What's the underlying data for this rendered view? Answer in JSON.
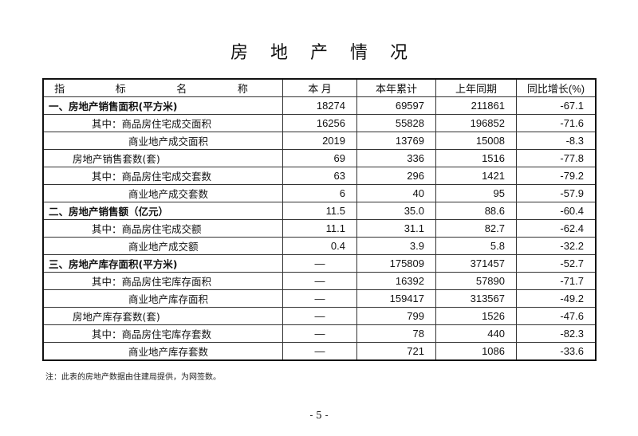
{
  "title_chars": [
    "房",
    "地",
    "产",
    "情",
    "况"
  ],
  "headers": [
    "指 标 名 称",
    "本 月",
    "本年累计",
    "上年同期",
    "同比增长(%)"
  ],
  "rows": [
    {
      "name": "一、房地产销售面积(平方米)",
      "level": "l0",
      "bold": true,
      "v": [
        "18274",
        "69597",
        "211861",
        "-67.1"
      ]
    },
    {
      "name": "其中：商品房住宅成交面积",
      "level": "l1",
      "v": [
        "16256",
        "55828",
        "196852",
        "-71.6"
      ]
    },
    {
      "name": "商业地产成交面积",
      "level": "l2",
      "v": [
        "2019",
        "13769",
        "15008",
        "-8.3"
      ]
    },
    {
      "name": "房地产销售套数(套)",
      "level": "la",
      "v": [
        "69",
        "336",
        "1516",
        "-77.8"
      ]
    },
    {
      "name": "其中：商品房住宅成交套数",
      "level": "l1",
      "v": [
        "63",
        "296",
        "1421",
        "-79.2"
      ]
    },
    {
      "name": "商业地产成交套数",
      "level": "l2",
      "v": [
        "6",
        "40",
        "95",
        "-57.9"
      ]
    },
    {
      "name": "二、房地产销售额（亿元）",
      "level": "l0",
      "bold": true,
      "v": [
        "11.5",
        "35.0",
        "88.6",
        "-60.4"
      ]
    },
    {
      "name": "其中：商品房住宅成交额",
      "level": "l1",
      "v": [
        "11.1",
        "31.1",
        "82.7",
        "-62.4"
      ]
    },
    {
      "name": "商业地产成交额",
      "level": "l2",
      "v": [
        "0.4",
        "3.9",
        "5.8",
        "-32.2"
      ]
    },
    {
      "name": "三、房地产库存面积(平方米)",
      "level": "l0",
      "bold": true,
      "v": [
        "—",
        "175809",
        "371457",
        "-52.7"
      ]
    },
    {
      "name": "其中：商品房住宅库存面积",
      "level": "l1",
      "v": [
        "—",
        "16392",
        "57890",
        "-71.7"
      ]
    },
    {
      "name": "商业地产库存面积",
      "level": "l2",
      "v": [
        "—",
        "159417",
        "313567",
        "-49.2"
      ]
    },
    {
      "name": "房地产库存套数(套)",
      "level": "la",
      "v": [
        "—",
        "799",
        "1526",
        "-47.6"
      ]
    },
    {
      "name": "其中：商品房住宅库存套数",
      "level": "l1",
      "v": [
        "—",
        "78",
        "440",
        "-82.3"
      ]
    },
    {
      "name": "商业地产库存套数",
      "level": "l2",
      "v": [
        "—",
        "721",
        "1086",
        "-33.6"
      ]
    }
  ],
  "note": "注：此表的房地产数据由住建局提供，为网签数。",
  "page_number": "- 5 -"
}
